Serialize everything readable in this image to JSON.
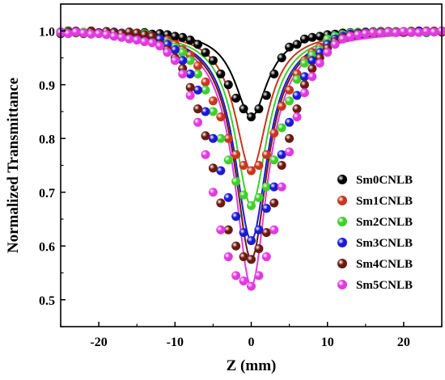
{
  "chart_data": {
    "type": "scatter",
    "title": "",
    "xlabel": "Z (mm)",
    "ylabel": "Normalized Transmittance",
    "xlim": [
      -25,
      25
    ],
    "ylim": [
      0.45,
      1.05
    ],
    "x_ticks": [
      -20,
      -10,
      0,
      10,
      20
    ],
    "x_tick_labels": [
      "-20",
      "-10",
      "0",
      "10",
      "20"
    ],
    "y_ticks": [
      0.5,
      0.6,
      0.7,
      0.8,
      0.9,
      1.0
    ],
    "y_tick_labels": [
      "0.5",
      "0.6",
      "0.7",
      "0.8",
      "0.9",
      "1.0"
    ],
    "grid": false,
    "legend_position": "right",
    "markers": "spheres with fitted solid curves",
    "x": [
      -25,
      -24,
      -23,
      -22,
      -21,
      -20,
      -19,
      -18,
      -17,
      -16,
      -15,
      -14,
      -13,
      -12,
      -11,
      -10,
      -9,
      -8,
      -7,
      -6,
      -5,
      -4,
      -3,
      -2,
      -1,
      0,
      1,
      2,
      3,
      4,
      5,
      6,
      7,
      8,
      9,
      10,
      11,
      12,
      13,
      14,
      15,
      16,
      17,
      18,
      19,
      20,
      21,
      22,
      23,
      24,
      25
    ],
    "series": [
      {
        "name": "Sm0CNLB",
        "color": "#000000",
        "fit_depth": 0.16,
        "fit_z0": 2.6,
        "values": [
          0.995,
          1.0,
          0.998,
          0.997,
          1.0,
          0.996,
          0.999,
          0.997,
          0.995,
          0.998,
          0.996,
          0.997,
          0.994,
          0.995,
          0.993,
          0.99,
          0.988,
          0.983,
          0.975,
          0.96,
          0.945,
          0.92,
          0.9,
          0.875,
          0.855,
          0.84,
          0.855,
          0.88,
          0.92,
          0.95,
          0.97,
          0.975,
          0.985,
          0.988,
          0.99,
          0.993,
          0.994,
          0.996,
          0.997,
          0.996,
          0.998,
          0.997,
          0.999,
          0.998,
          0.997,
          0.999,
          0.998,
          1.0,
          0.997,
          0.999,
          0.998
        ]
      },
      {
        "name": "Sm1CNLB",
        "color": "#c8361e",
        "fit_depth": 0.26,
        "fit_z0": 2.6,
        "values": [
          0.998,
          0.996,
          1.0,
          0.997,
          0.999,
          0.995,
          0.998,
          0.996,
          0.994,
          0.997,
          0.995,
          0.993,
          0.99,
          0.985,
          0.983,
          0.975,
          0.965,
          0.955,
          0.935,
          0.905,
          0.87,
          0.84,
          0.8,
          0.77,
          0.75,
          0.74,
          0.75,
          0.77,
          0.81,
          0.86,
          0.89,
          0.92,
          0.945,
          0.96,
          0.97,
          0.98,
          0.985,
          0.99,
          0.993,
          0.995,
          0.996,
          0.997,
          0.998,
          0.997,
          0.999,
          0.998,
          0.997,
          0.999,
          0.998,
          1.0,
          0.999
        ]
      },
      {
        "name": "Sm2CNLB",
        "color": "#3fcf2a",
        "fit_depth": 0.325,
        "fit_z0": 2.6,
        "values": [
          0.997,
          0.999,
          0.996,
          0.998,
          0.995,
          0.997,
          0.996,
          0.998,
          0.995,
          0.99,
          0.993,
          0.995,
          0.99,
          0.985,
          0.978,
          0.97,
          0.96,
          0.945,
          0.92,
          0.89,
          0.85,
          0.8,
          0.76,
          0.72,
          0.695,
          0.675,
          0.69,
          0.71,
          0.76,
          0.82,
          0.87,
          0.91,
          0.94,
          0.955,
          0.965,
          0.985,
          0.99,
          0.993,
          0.996,
          0.998,
          0.997,
          0.999,
          0.998,
          0.997,
          0.999,
          0.998,
          1.0,
          0.999,
          0.998,
          0.999,
          1.0
        ]
      },
      {
        "name": "Sm3CNLB",
        "color": "#1a1ad6",
        "fit_depth": 0.39,
        "fit_z0": 2.6,
        "values": [
          0.998,
          0.997,
          0.999,
          0.996,
          0.998,
          0.997,
          0.995,
          0.998,
          0.996,
          0.994,
          0.995,
          0.992,
          0.99,
          0.985,
          0.975,
          0.965,
          0.945,
          0.92,
          0.89,
          0.85,
          0.8,
          0.74,
          0.69,
          0.655,
          0.625,
          0.61,
          0.63,
          0.67,
          0.71,
          0.77,
          0.83,
          0.88,
          0.915,
          0.945,
          0.96,
          0.975,
          0.985,
          0.99,
          0.994,
          0.996,
          0.997,
          0.998,
          0.997,
          0.999,
          0.998,
          0.999,
          0.998,
          1.0,
          0.999,
          0.998,
          1.0
        ]
      },
      {
        "name": "Sm4CNLB",
        "color": "#6b1a10",
        "fit_depth": 0.425,
        "fit_z0": 2.6,
        "values": [
          0.996,
          0.998,
          0.997,
          0.995,
          0.998,
          0.996,
          0.999,
          0.997,
          0.995,
          0.998,
          0.996,
          0.993,
          0.99,
          0.975,
          0.965,
          0.95,
          0.93,
          0.895,
          0.855,
          0.805,
          0.745,
          0.68,
          0.63,
          0.6,
          0.58,
          0.575,
          0.595,
          0.625,
          0.68,
          0.75,
          0.8,
          0.855,
          0.9,
          0.93,
          0.95,
          0.968,
          0.98,
          0.987,
          0.992,
          0.995,
          0.996,
          0.998,
          0.997,
          0.999,
          0.998,
          0.997,
          0.999,
          0.998,
          1.0,
          0.999,
          0.998
        ]
      },
      {
        "name": "Sm5CNLB",
        "color": "#e03ae0",
        "fit_depth": 0.475,
        "fit_z0": 2.6,
        "values": [
          0.997,
          0.995,
          0.998,
          0.996,
          0.994,
          0.995,
          0.993,
          0.99,
          0.988,
          0.985,
          0.983,
          0.98,
          0.978,
          0.972,
          0.96,
          0.945,
          0.92,
          0.88,
          0.83,
          0.77,
          0.7,
          0.63,
          0.58,
          0.545,
          0.535,
          0.525,
          0.545,
          0.58,
          0.63,
          0.71,
          0.775,
          0.84,
          0.885,
          0.915,
          0.94,
          0.96,
          0.975,
          0.985,
          0.99,
          0.993,
          0.995,
          0.997,
          0.996,
          0.998,
          0.997,
          0.999,
          0.998,
          0.997,
          0.999,
          0.998,
          1.0
        ]
      }
    ]
  }
}
